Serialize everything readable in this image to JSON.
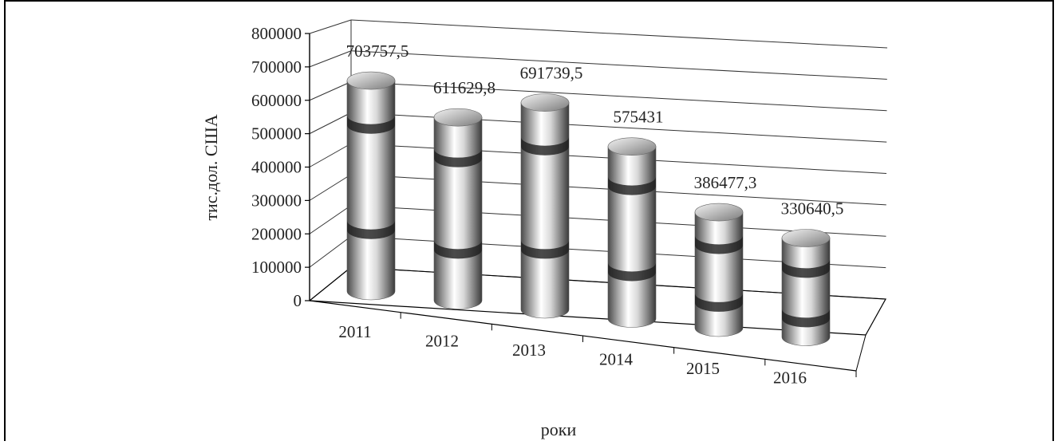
{
  "chart_data": {
    "type": "bar",
    "style": "3d-cylinder",
    "categories": [
      "2011",
      "2012",
      "2013",
      "2014",
      "2015",
      "2016"
    ],
    "values": [
      703757.5,
      611629.8,
      691739.5,
      575431,
      386477.3,
      330640.5
    ],
    "data_labels": [
      "703757,5",
      "611629,8",
      "691739,5",
      "575431",
      "386477,3",
      "330640,5"
    ],
    "title": "",
    "xlabel": "роки",
    "ylabel": "тис.дол. США",
    "ylim": [
      0,
      800000
    ],
    "yticks": [
      "0",
      "100000",
      "200000",
      "300000",
      "400000",
      "500000",
      "600000",
      "700000",
      "800000"
    ],
    "grid": true,
    "legend": "none"
  }
}
